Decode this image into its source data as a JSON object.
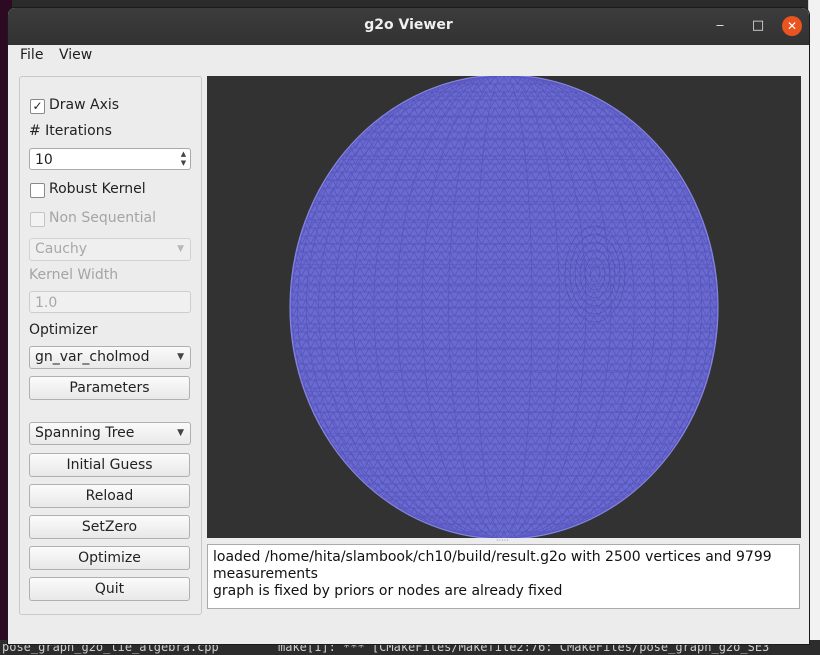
{
  "window": {
    "title": "g2o Viewer",
    "minimize_glyph": "‒",
    "maximize_glyph": "□",
    "close_glyph": "✕",
    "accent_color": "#e95420"
  },
  "menu": {
    "file": "File",
    "view": "View"
  },
  "panel": {
    "draw_axis": {
      "label": "Draw Axis",
      "checked": true,
      "check_glyph": "✓"
    },
    "iterations": {
      "label": "# Iterations",
      "value": "10"
    },
    "robust_kernel": {
      "label": "Robust Kernel",
      "checked": false
    },
    "non_sequential": {
      "label": "Non Sequential",
      "checked": false,
      "enabled": false
    },
    "kernel_select": {
      "value": "Cauchy",
      "enabled": false
    },
    "kernel_width": {
      "label": "Kernel Width",
      "value": "1.0",
      "enabled": false
    },
    "optimizer": {
      "label": "Optimizer",
      "value": "gn_var_cholmod"
    },
    "parameters_button": "Parameters",
    "initialization": {
      "value": "Spanning Tree"
    },
    "initial_guess_button": "Initial Guess",
    "reload_button": "Reload",
    "setzero_button": "SetZero",
    "optimize_button": "Optimize",
    "quit_button": "Quit"
  },
  "log": {
    "lines": [
      "loaded /home/hita/slambook/ch10/build/result.g2o with 2500 vertices and 9799 measurements",
      "graph is fixed by priors or nodes are already fixed"
    ]
  },
  "viewer": {
    "mesh_color": "#6a6ad0",
    "background": "#323232"
  },
  "background_terminal": {
    "left_text": "pose_graph_g2o_lie_algebra.cpp",
    "right_text": "make[1]: *** [CMakeFiles/Makefile2:76: CMakeFiles/pose_graph_g2o_SE3"
  }
}
